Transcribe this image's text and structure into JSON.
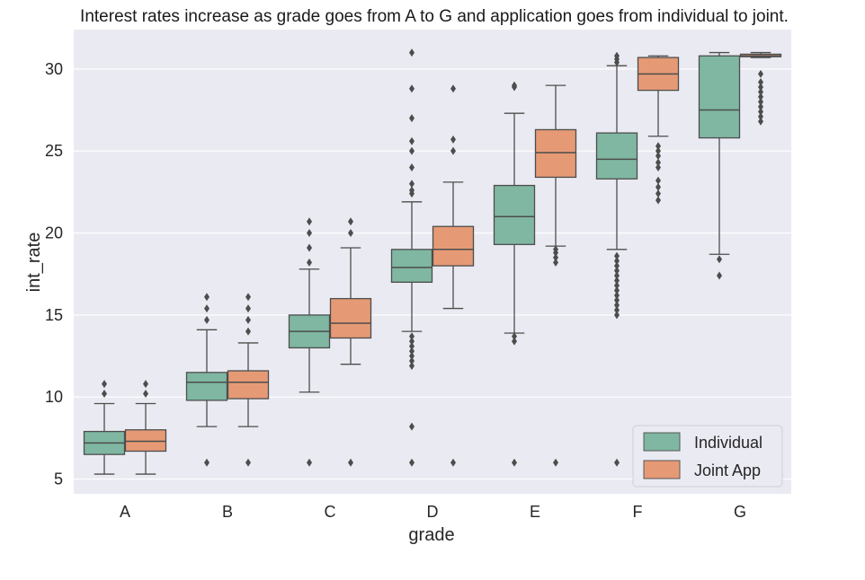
{
  "chart_data": {
    "type": "boxplot",
    "title": "Interest rates increase as grade goes from A to G and application goes from individual to joint.",
    "xlabel": "grade",
    "ylabel": "int_rate",
    "categories": [
      "A",
      "B",
      "C",
      "D",
      "E",
      "F",
      "G"
    ],
    "ylim": [
      4.1,
      32.4
    ],
    "yticks": [
      5,
      10,
      15,
      20,
      25,
      30
    ],
    "grid": true,
    "legend_placement": "bottom-right",
    "series": [
      {
        "name": "Individual",
        "color": "#7fb7a2",
        "boxes": [
          {
            "whislo": 5.3,
            "q1": 6.5,
            "med": 7.2,
            "q3": 7.9,
            "whishi": 9.6,
            "fliers": [
              10.2,
              10.8
            ]
          },
          {
            "whislo": 8.2,
            "q1": 9.8,
            "med": 10.9,
            "q3": 11.5,
            "whishi": 14.1,
            "fliers": [
              6.0,
              14.7,
              15.4,
              16.1
            ]
          },
          {
            "whislo": 10.3,
            "q1": 13.0,
            "med": 14.0,
            "q3": 15.0,
            "whishi": 17.8,
            "fliers": [
              6.0,
              18.2,
              19.1,
              20.0,
              20.7
            ]
          },
          {
            "whislo": 14.0,
            "q1": 17.0,
            "med": 17.9,
            "q3": 19.0,
            "whishi": 21.9,
            "fliers": [
              6.0,
              8.2,
              11.9,
              12.2,
              12.5,
              12.8,
              13.1,
              13.4,
              13.7,
              22.4,
              22.6,
              23.0,
              24.0,
              25.0,
              25.6,
              27.0,
              28.8,
              31.0
            ]
          },
          {
            "whislo": 13.9,
            "q1": 19.3,
            "med": 21.0,
            "q3": 22.9,
            "whishi": 27.3,
            "fliers": [
              6.0,
              13.4,
              13.7,
              28.9,
              29.0
            ]
          },
          {
            "whislo": 19.0,
            "q1": 23.3,
            "med": 24.5,
            "q3": 26.1,
            "whishi": 30.2,
            "fliers": [
              6.0,
              15.0,
              15.3,
              15.6,
              15.9,
              16.2,
              16.5,
              16.8,
              17.1,
              17.4,
              17.7,
              18.0,
              18.3,
              18.6,
              30.4,
              30.6,
              30.8
            ]
          },
          {
            "whislo": 18.7,
            "q1": 25.8,
            "med": 27.5,
            "q3": 30.8,
            "whishi": 31.0,
            "fliers": [
              17.4,
              18.4
            ]
          }
        ]
      },
      {
        "name": "Joint App",
        "color": "#e59a75",
        "boxes": [
          {
            "whislo": 5.3,
            "q1": 6.7,
            "med": 7.3,
            "q3": 8.0,
            "whishi": 9.6,
            "fliers": [
              10.2,
              10.8
            ]
          },
          {
            "whislo": 8.2,
            "q1": 9.9,
            "med": 10.9,
            "q3": 11.6,
            "whishi": 13.3,
            "fliers": [
              6.0,
              14.0,
              14.7,
              15.4,
              16.1
            ]
          },
          {
            "whislo": 12.0,
            "q1": 13.6,
            "med": 14.5,
            "q3": 16.0,
            "whishi": 19.1,
            "fliers": [
              6.0,
              20.0,
              20.7
            ]
          },
          {
            "whislo": 15.4,
            "q1": 18.0,
            "med": 19.0,
            "q3": 20.4,
            "whishi": 23.1,
            "fliers": [
              6.0,
              25.0,
              25.7,
              28.8
            ]
          },
          {
            "whislo": 19.2,
            "q1": 23.4,
            "med": 24.9,
            "q3": 26.3,
            "whishi": 29.0,
            "fliers": [
              6.0,
              18.2,
              18.5,
              18.8,
              19.0
            ]
          },
          {
            "whislo": 25.9,
            "q1": 28.7,
            "med": 29.7,
            "q3": 30.7,
            "whishi": 30.8,
            "fliers": [
              22.0,
              22.4,
              22.8,
              23.2,
              24.0,
              24.3,
              24.7,
              25.0,
              25.3
            ]
          },
          {
            "whislo": 30.7,
            "q1": 30.75,
            "med": 30.8,
            "q3": 30.9,
            "whishi": 31.0,
            "fliers": [
              26.8,
              27.1,
              27.4,
              27.7,
              28.0,
              28.3,
              28.6,
              28.9,
              29.2,
              29.7
            ]
          }
        ]
      }
    ]
  }
}
